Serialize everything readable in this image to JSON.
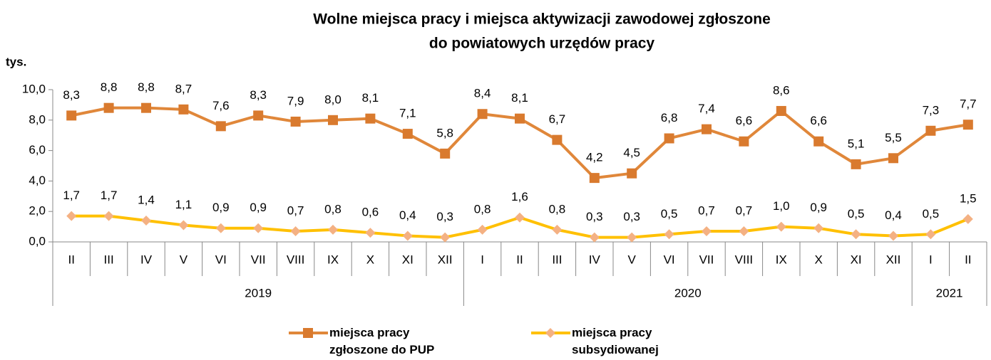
{
  "chart_data": {
    "type": "line",
    "title": "Wolne miejsca pracy i miejsca aktywizacji zawodowej zgłoszone",
    "subtitle": "do powiatowych urzędów pracy",
    "y_label": "tys.",
    "categories": [
      "II",
      "III",
      "IV",
      "V",
      "VI",
      "VII",
      "VIII",
      "IX",
      "X",
      "XI",
      "XII",
      "I",
      "II",
      "III",
      "IV",
      "V",
      "VI",
      "VII",
      "VIII",
      "IX",
      "X",
      "XI",
      "XII",
      "I",
      "II"
    ],
    "year_groups": [
      {
        "label": "2019",
        "span": 11
      },
      {
        "label": "2020",
        "span": 12
      },
      {
        "label": "2021",
        "span": 2
      }
    ],
    "ylim": [
      0,
      10
    ],
    "yticks": [
      {
        "value": 0,
        "label": "0,0"
      },
      {
        "value": 2,
        "label": "2,0"
      },
      {
        "value": 4,
        "label": "4,0"
      },
      {
        "value": 6,
        "label": "6,0"
      },
      {
        "value": 8,
        "label": "8,0"
      },
      {
        "value": 10,
        "label": "10,0"
      }
    ],
    "series": [
      {
        "name": "miejsca pracy zgłoszone do PUP",
        "color": "#E0873A",
        "marker_color": "#D97A2E",
        "marker": "square",
        "values": [
          8.3,
          8.8,
          8.8,
          8.7,
          7.6,
          8.3,
          7.9,
          8.0,
          8.1,
          7.1,
          5.8,
          8.4,
          8.1,
          6.7,
          4.2,
          4.5,
          6.8,
          7.4,
          6.6,
          8.6,
          6.6,
          5.1,
          5.5,
          7.3,
          7.7
        ],
        "value_labels": [
          "8,3",
          "8,8",
          "8,8",
          "8,7",
          "7,6",
          "8,3",
          "7,9",
          "8,0",
          "8,1",
          "7,1",
          "5,8",
          "8,4",
          "8,1",
          "6,7",
          "4,2",
          "4,5",
          "6,8",
          "7,4",
          "6,6",
          "8,6",
          "6,6",
          "5,1",
          "5,5",
          "7,3",
          "7,7"
        ]
      },
      {
        "name": "miejsca pracy subsydiowanej",
        "color": "#FFC000",
        "marker_color": "#F4B183",
        "marker": "diamond",
        "values": [
          1.7,
          1.7,
          1.4,
          1.1,
          0.9,
          0.9,
          0.7,
          0.8,
          0.6,
          0.4,
          0.3,
          0.8,
          1.6,
          0.8,
          0.3,
          0.3,
          0.5,
          0.7,
          0.7,
          1.0,
          0.9,
          0.5,
          0.4,
          0.5,
          1.5
        ],
        "value_labels": [
          "1,7",
          "1,7",
          "1,4",
          "1,1",
          "0,9",
          "0,9",
          "0,7",
          "0,8",
          "0,6",
          "0,4",
          "0,3",
          "0,8",
          "1,6",
          "0,8",
          "0,3",
          "0,3",
          "0,5",
          "0,7",
          "0,7",
          "1,0",
          "0,9",
          "0,5",
          "0,4",
          "0,5",
          "1,5"
        ]
      }
    ]
  }
}
